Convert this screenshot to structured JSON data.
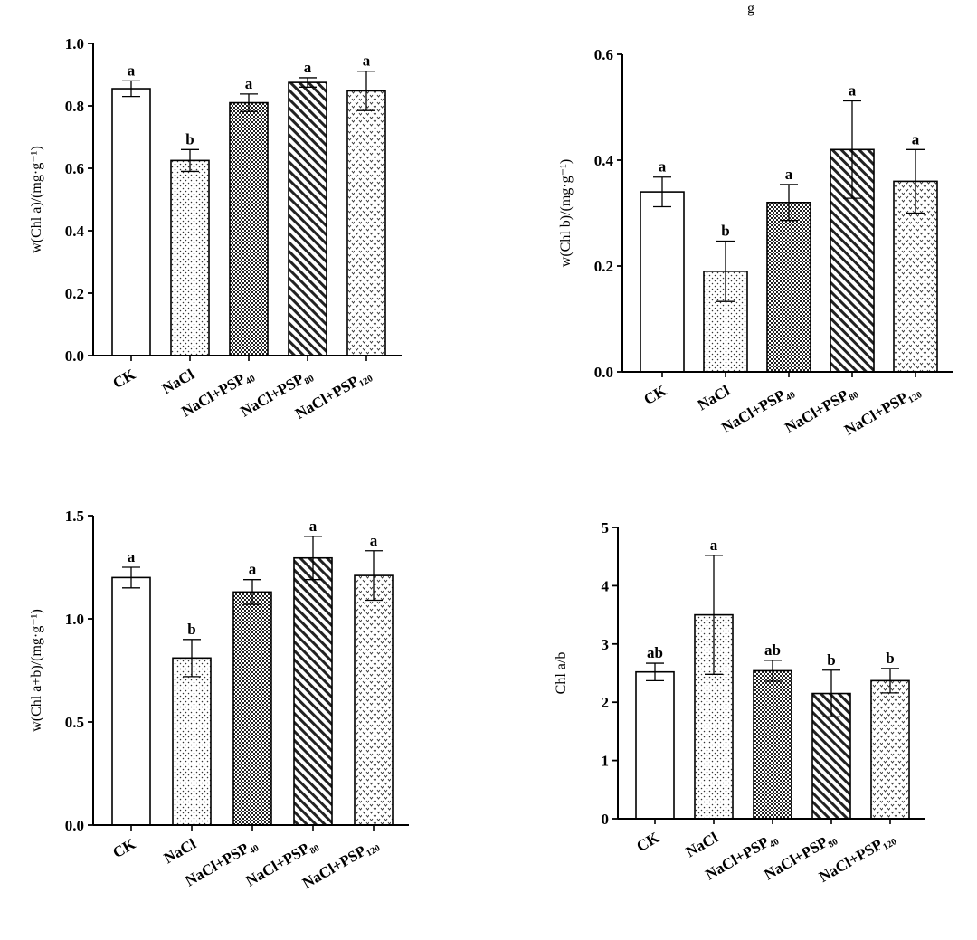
{
  "header": {
    "fragment": "g"
  },
  "chart_data": [
    {
      "type": "bar",
      "ylabel": "w(Chl a)/(mg·g⁻¹)",
      "ylim": [
        0,
        1.0
      ],
      "yticks": [
        "0.0",
        "0.2",
        "0.4",
        "0.6",
        "0.8",
        "1.0"
      ],
      "ytick_values": [
        0,
        0.2,
        0.4,
        0.6,
        0.8,
        1.0
      ],
      "categories": [
        "CK",
        "NaCl",
        "NaCl+PSP₄₀",
        "NaCl+PSP₈₀",
        "NaCl+PSP₁₂₀"
      ],
      "values": [
        0.855,
        0.625,
        0.81,
        0.875,
        0.848
      ],
      "errors": [
        0.025,
        0.035,
        0.028,
        0.015,
        0.063
      ],
      "significance": [
        "a",
        "b",
        "a",
        "a",
        "a"
      ],
      "patterns": [
        "none",
        "dots",
        "checker",
        "diag",
        "vee"
      ]
    },
    {
      "type": "bar",
      "ylabel": "w(Chl b)/(mg·g⁻¹)",
      "ylim": [
        0,
        0.6
      ],
      "yticks": [
        "0.0",
        "0.2",
        "0.4",
        "0.6"
      ],
      "ytick_values": [
        0,
        0.2,
        0.4,
        0.6
      ],
      "categories": [
        "CK",
        "NaCl",
        "NaCl+PSP₄₀",
        "NaCl+PSP₈₀",
        "NaCl+PSP₁₂₀"
      ],
      "values": [
        0.34,
        0.19,
        0.32,
        0.42,
        0.36
      ],
      "errors": [
        0.028,
        0.057,
        0.034,
        0.092,
        0.06
      ],
      "significance": [
        "a",
        "b",
        "a",
        "a",
        "a"
      ],
      "patterns": [
        "none",
        "dots",
        "checker",
        "diag",
        "vee"
      ]
    },
    {
      "type": "bar",
      "ylabel": "w(Chl a+b)/(mg·g⁻¹)",
      "ylim": [
        0,
        1.5
      ],
      "yticks": [
        "0.0",
        "0.5",
        "1.0",
        "1.5"
      ],
      "ytick_values": [
        0,
        0.5,
        1.0,
        1.5
      ],
      "categories": [
        "CK",
        "NaCl",
        "NaCl+PSP₄₀",
        "NaCl+PSP₈₀",
        "NaCl+PSP₁₂₀"
      ],
      "values": [
        1.2,
        0.81,
        1.13,
        1.295,
        1.21
      ],
      "errors": [
        0.05,
        0.09,
        0.06,
        0.105,
        0.12
      ],
      "significance": [
        "a",
        "b",
        "a",
        "a",
        "a"
      ],
      "patterns": [
        "none",
        "dots",
        "checker",
        "diag",
        "vee"
      ]
    },
    {
      "type": "bar",
      "ylabel": "Chl a/b",
      "ylim": [
        0,
        5
      ],
      "yticks": [
        "0",
        "1",
        "2",
        "3",
        "4",
        "5"
      ],
      "ytick_values": [
        0,
        1,
        2,
        3,
        4,
        5
      ],
      "categories": [
        "CK",
        "NaCl",
        "NaCl+PSP₄₀",
        "NaCl+PSP₈₀",
        "NaCl+PSP₁₂₀"
      ],
      "values": [
        2.52,
        3.5,
        2.54,
        2.15,
        2.37
      ],
      "errors": [
        0.15,
        1.02,
        0.18,
        0.4,
        0.21
      ],
      "significance": [
        "ab",
        "a",
        "ab",
        "b",
        "b"
      ],
      "patterns": [
        "none",
        "dots",
        "checker",
        "diag",
        "vee"
      ]
    }
  ]
}
